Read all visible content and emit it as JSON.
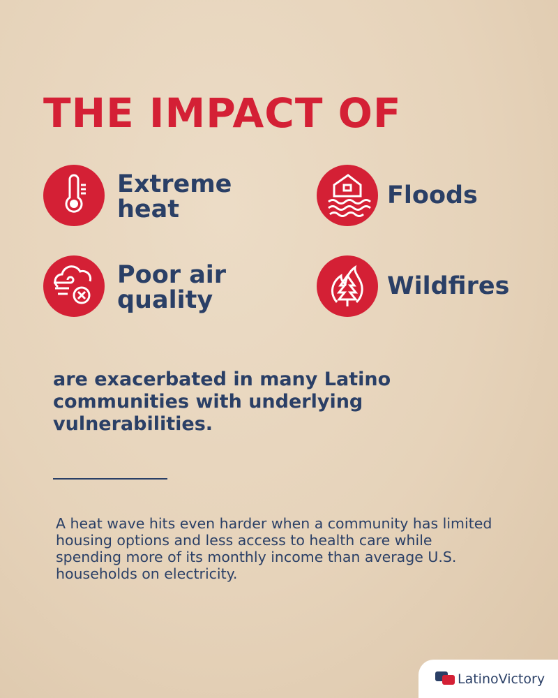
{
  "header": {
    "title": "THE IMPACT OF"
  },
  "impacts": [
    {
      "label": "Extreme heat"
    },
    {
      "label": "Floods"
    },
    {
      "label": "Poor air quality"
    },
    {
      "label": "Wildfires"
    }
  ],
  "statement": "are exacerbated in many Latino communities with underlying vulnerabilities.",
  "body": "A heat wave hits even harder when a community has limited housing options and less access to health care while spending more of its monthly income than average U.S. households on electricity.",
  "logo": {
    "text": "LatinoVictory"
  }
}
